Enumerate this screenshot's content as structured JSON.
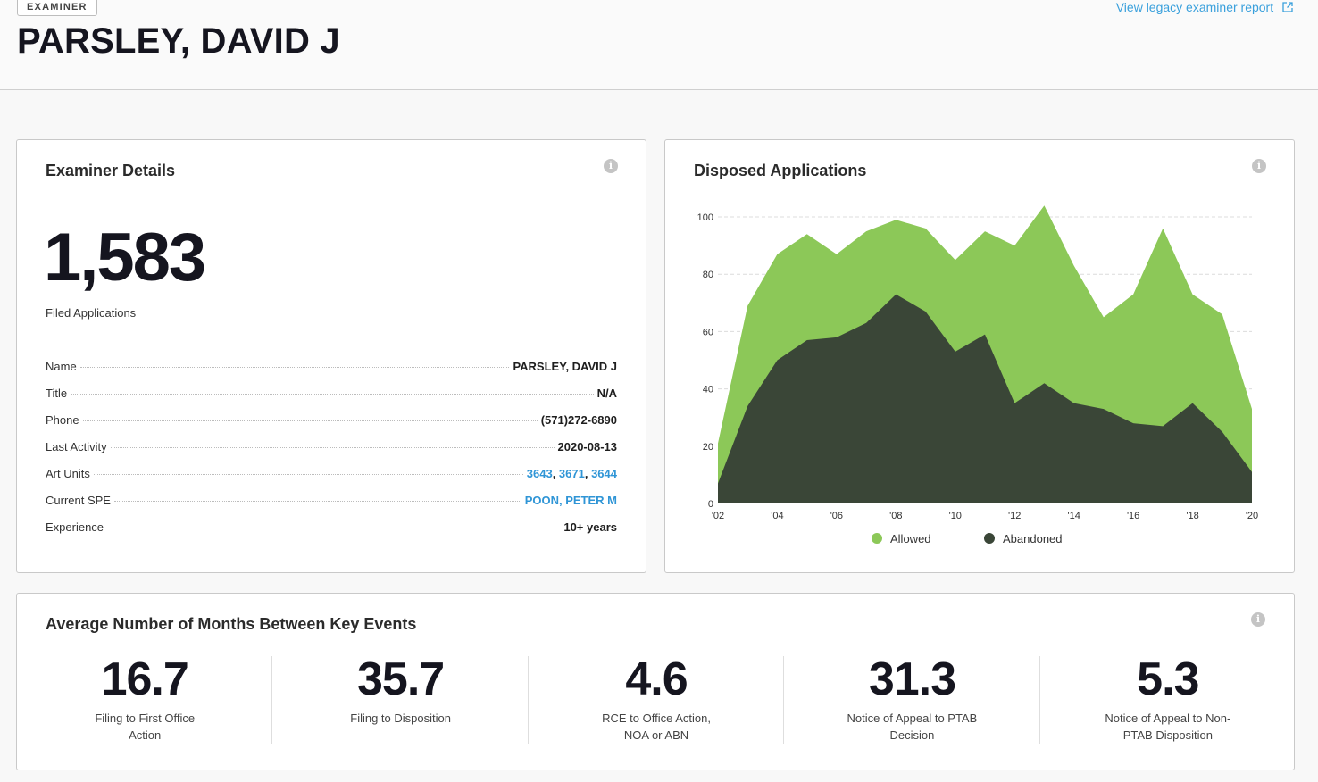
{
  "header": {
    "badge": "EXAMINER",
    "name": "PARSLEY, DAVID J",
    "legacy_link": "View legacy examiner report"
  },
  "details": {
    "title": "Examiner Details",
    "filed_count": "1,583",
    "filed_caption": "Filed Applications",
    "rows": [
      {
        "label": "Name",
        "value": "PARSLEY, DAVID J"
      },
      {
        "label": "Title",
        "value": "N/A"
      },
      {
        "label": "Phone",
        "value": "(571)272-6890"
      },
      {
        "label": "Last Activity",
        "value": "2020-08-13"
      },
      {
        "label": "Art Units",
        "links": [
          "3643",
          "3671",
          "3644"
        ]
      },
      {
        "label": "Current SPE",
        "link": "POON, PETER M"
      },
      {
        "label": "Experience",
        "value": "10+ years"
      }
    ]
  },
  "disposed": {
    "title": "Disposed Applications"
  },
  "chart_data": {
    "type": "area",
    "title": "Disposed Applications",
    "x": [
      "'02",
      "'03",
      "'04",
      "'05",
      "'06",
      "'07",
      "'08",
      "'09",
      "'10",
      "'11",
      "'12",
      "'13",
      "'14",
      "'15",
      "'16",
      "'17",
      "'18",
      "'19",
      "'20"
    ],
    "x_ticks": [
      "'02",
      "'04",
      "'06",
      "'08",
      "'10",
      "'12",
      "'14",
      "'16",
      "'18",
      "'20"
    ],
    "y_ticks": [
      0,
      20,
      40,
      60,
      80,
      100
    ],
    "ylim": [
      0,
      105
    ],
    "series": [
      {
        "name": "Allowed",
        "color": "#8cc858",
        "values": [
          21,
          69,
          87,
          94,
          87,
          95,
          99,
          96,
          85,
          95,
          90,
          104,
          83,
          65,
          73,
          96,
          73,
          66,
          33
        ]
      },
      {
        "name": "Abandoned",
        "color": "#3a4637",
        "values": [
          7,
          34,
          50,
          57,
          58,
          63,
          73,
          67,
          53,
          59,
          35,
          42,
          35,
          33,
          28,
          27,
          35,
          25,
          11
        ]
      }
    ],
    "grid": true,
    "legend_position": "bottom"
  },
  "months": {
    "title": "Average Number of Months Between Key Events",
    "metrics": [
      {
        "value": "16.7",
        "label": "Filing to First Office Action"
      },
      {
        "value": "35.7",
        "label": "Filing to Disposition"
      },
      {
        "value": "4.6",
        "label": "RCE to Office Action, NOA or ABN"
      },
      {
        "value": "31.3",
        "label": "Notice of Appeal to PTAB Decision"
      },
      {
        "value": "5.3",
        "label": "Notice of Appeal to Non-PTAB Disposition"
      }
    ]
  },
  "info_icon_glyph": "i"
}
